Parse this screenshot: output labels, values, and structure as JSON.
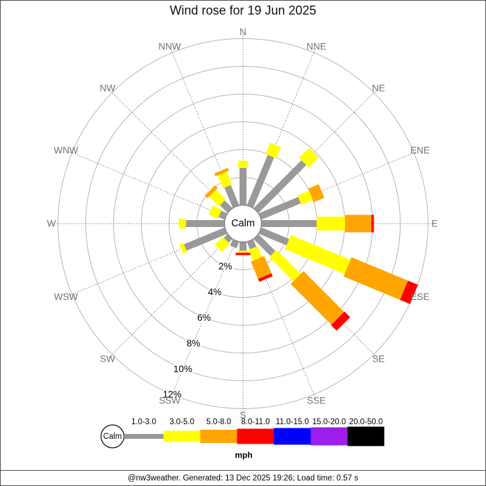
{
  "title": "Wind rose for 19 Jun 2025",
  "footer": {
    "text": "@nw3weather. Generated: 13 Dec 2025 19:26; Load time: 0.57 s"
  },
  "chart_data": {
    "type": "wind_rose",
    "title": "Wind rose for 19 Jun 2025",
    "center_label": "Calm",
    "compass_labels": [
      "N",
      "NNE",
      "NE",
      "ENE",
      "E",
      "ESE",
      "SE",
      "SSE",
      "S",
      "SSW",
      "SW",
      "WSW",
      "W",
      "WNW",
      "NW",
      "NNW"
    ],
    "ring_percents": [
      2,
      4,
      6,
      8,
      10,
      12
    ],
    "ring_labels": [
      "2%",
      "4%",
      "6%",
      "8%",
      "10%",
      "12%"
    ],
    "ring_label_direction_deg": 202.5,
    "speed_bins": [
      {
        "label": "1.0-3.0",
        "color": "#999999"
      },
      {
        "label": "3.0-5.0",
        "color": "#ffff00"
      },
      {
        "label": "5.0-8.0",
        "color": "#ffa500"
      },
      {
        "label": "8.0-11.0",
        "color": "#ff0000"
      },
      {
        "label": "11.0-15.0",
        "color": "#0000ff"
      },
      {
        "label": "15.0-20.0",
        "color": "#9d1eeb"
      },
      {
        "label": "20.0-50.0",
        "color": "#000000"
      }
    ],
    "legend": {
      "calm_label": "Calm",
      "unit_label": "mph"
    },
    "series": [
      {
        "direction": "N",
        "segments": [
          {
            "bin": "1.0-3.0",
            "to_pct": 2.7
          },
          {
            "bin": "3.0-5.0",
            "to_pct": 3.2
          }
        ]
      },
      {
        "direction": "NNE",
        "segments": [
          {
            "bin": "1.0-3.0",
            "to_pct": 3.95
          },
          {
            "bin": "3.0-5.0",
            "to_pct": 4.8
          }
        ]
      },
      {
        "direction": "NE",
        "segments": [
          {
            "bin": "1.0-3.0",
            "to_pct": 4.9
          },
          {
            "bin": "3.0-5.0",
            "to_pct": 5.9
          }
        ]
      },
      {
        "direction": "ENE",
        "segments": [
          {
            "bin": "1.0-3.0",
            "to_pct": 3.1
          },
          {
            "bin": "3.0-5.0",
            "to_pct": 4.0
          },
          {
            "bin": "5.0-8.0",
            "to_pct": 4.8
          }
        ]
      },
      {
        "direction": "E",
        "segments": [
          {
            "bin": "1.0-3.0",
            "to_pct": 4.0
          },
          {
            "bin": "3.0-5.0",
            "to_pct": 6.05
          },
          {
            "bin": "5.0-8.0",
            "to_pct": 7.95
          },
          {
            "bin": "8.0-11.0",
            "to_pct": 8.1
          }
        ]
      },
      {
        "direction": "ESE",
        "segments": [
          {
            "bin": "1.0-3.0",
            "to_pct": 2.2
          },
          {
            "bin": "3.0-5.0",
            "to_pct": 6.85
          },
          {
            "bin": "5.0-8.0",
            "to_pct": 11.25
          },
          {
            "bin": "8.0-11.0",
            "to_pct": 12.0
          }
        ]
      },
      {
        "direction": "SE",
        "segments": [
          {
            "bin": "1.0-3.0",
            "to_pct": 1.75
          },
          {
            "bin": "3.0-5.0",
            "to_pct": 4.2
          },
          {
            "bin": "5.0-8.0",
            "to_pct": 8.35
          },
          {
            "bin": "8.0-11.0",
            "to_pct": 8.9
          }
        ]
      },
      {
        "direction": "SSE",
        "segments": [
          {
            "bin": "1.0-3.0",
            "to_pct": 0.6
          },
          {
            "bin": "3.0-5.0",
            "to_pct": 1.45
          },
          {
            "bin": "5.0-8.0",
            "to_pct": 2.8
          },
          {
            "bin": "8.0-11.0",
            "to_pct": 3.0
          }
        ]
      },
      {
        "direction": "S",
        "segments": [
          {
            "bin": "1.0-3.0",
            "to_pct": 0.65
          },
          {
            "bin": "3.0-5.0",
            "to_pct": 0.8
          },
          {
            "bin": "8.0-11.0",
            "to_pct": 0.95
          }
        ]
      },
      {
        "direction": "SSW",
        "segments": [
          {
            "bin": "1.0-3.0",
            "to_pct": 0.5
          }
        ]
      },
      {
        "direction": "SW",
        "segments": [
          {
            "bin": "1.0-3.0",
            "to_pct": 0.4
          },
          {
            "bin": "3.0-5.0",
            "to_pct": 1.2
          }
        ]
      },
      {
        "direction": "WSW",
        "segments": [
          {
            "bin": "1.0-3.0",
            "to_pct": 3.2
          },
          {
            "bin": "3.0-5.0",
            "to_pct": 3.5
          }
        ]
      },
      {
        "direction": "W",
        "segments": [
          {
            "bin": "1.0-3.0",
            "to_pct": 2.8
          },
          {
            "bin": "3.0-5.0",
            "to_pct": 3.3
          }
        ]
      },
      {
        "direction": "WNW",
        "segments": [
          {
            "bin": "1.0-3.0",
            "to_pct": 0.5
          },
          {
            "bin": "3.0-5.0",
            "to_pct": 1.2
          }
        ]
      },
      {
        "direction": "NW",
        "segments": [
          {
            "bin": "1.0-3.0",
            "to_pct": 0.8
          },
          {
            "bin": "3.0-5.0",
            "to_pct": 1.8
          },
          {
            "bin": "5.0-8.0",
            "to_pct": 2.05
          }
        ]
      },
      {
        "direction": "NNW",
        "segments": [
          {
            "bin": "1.0-3.0",
            "to_pct": 1.6
          },
          {
            "bin": "3.0-5.0",
            "to_pct": 2.6
          },
          {
            "bin": "5.0-8.0",
            "to_pct": 2.8
          }
        ]
      }
    ]
  }
}
